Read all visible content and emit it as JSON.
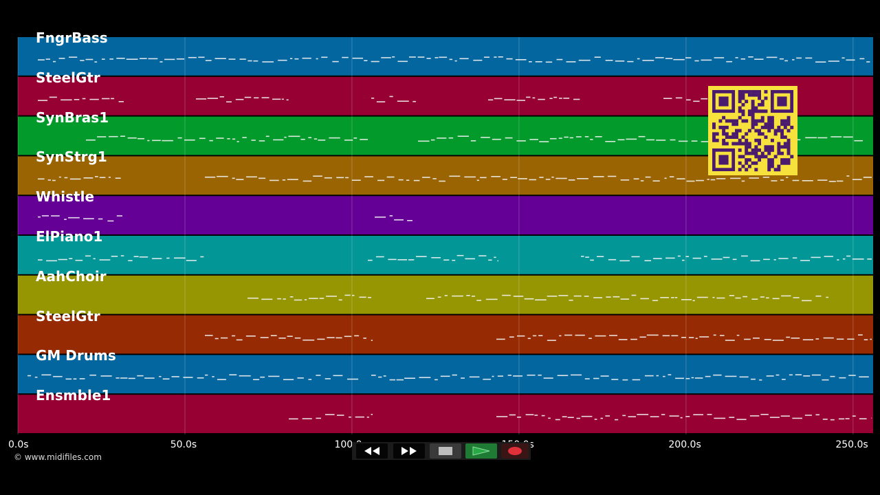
{
  "tracks": [
    {
      "name": "FngrBass",
      "color": "#03669e"
    },
    {
      "name": "SteelGtr",
      "color": "#960032"
    },
    {
      "name": "SynBras1",
      "color": "#029a2a"
    },
    {
      "name": "SynStrg1",
      "color": "#9a6402"
    },
    {
      "name": "Whistle",
      "color": "#640096"
    },
    {
      "name": "ElPiano1",
      "color": "#029696"
    },
    {
      "name": "AahChoir",
      "color": "#969602"
    },
    {
      "name": "SteelGtr",
      "color": "#962a02"
    },
    {
      "name": "GM Drums",
      "color": "#03669e"
    },
    {
      "name": "Ensmble1",
      "color": "#960032"
    }
  ],
  "time_axis": {
    "ticks": [
      "0.0s",
      "50.0s",
      "100.0s",
      "150.0s",
      "200.0s",
      "250.0s"
    ],
    "tick_values": [
      0,
      50,
      100,
      150,
      200,
      250
    ],
    "max": 256
  },
  "copyright": "© www.midifiles.com",
  "transport": {
    "rewind_icon": "rewind-icon",
    "fast_forward_icon": "fast-forward-icon",
    "stop_icon": "stop-icon",
    "play_icon": "play-icon",
    "record_icon": "record-icon",
    "play_color": "#2aa845",
    "record_color": "#e0303a"
  },
  "qr_code": {
    "color": "#f7e13c",
    "module_color": "#4a1a6e"
  }
}
